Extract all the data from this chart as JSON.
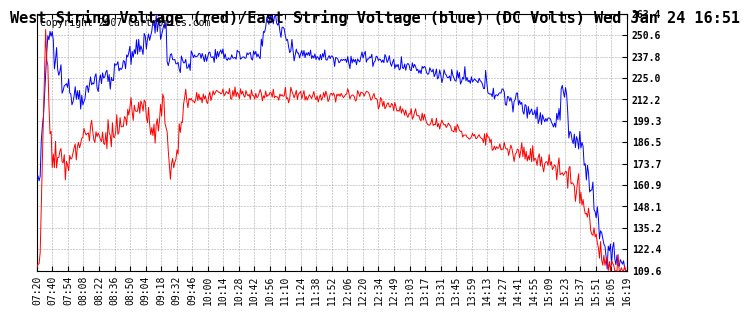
{
  "title": "West String Voltage (red)/East String Voltage (blue) (DC Volts) Wed Jan 24 16:51",
  "copyright": "Copyright 2007 Cartronics.com",
  "ylim": [
    109.6,
    263.4
  ],
  "yticks": [
    263.4,
    250.6,
    237.8,
    225.0,
    212.2,
    199.3,
    186.5,
    173.7,
    160.9,
    148.1,
    135.2,
    122.4,
    109.6
  ],
  "xtick_labels": [
    "07:20",
    "07:40",
    "07:54",
    "08:08",
    "08:22",
    "08:36",
    "08:50",
    "09:04",
    "09:18",
    "09:32",
    "09:46",
    "10:00",
    "10:14",
    "10:28",
    "10:42",
    "10:56",
    "11:10",
    "11:24",
    "11:38",
    "11:52",
    "12:06",
    "12:20",
    "12:34",
    "12:49",
    "13:03",
    "13:17",
    "13:31",
    "13:45",
    "13:59",
    "14:13",
    "14:27",
    "14:41",
    "14:55",
    "15:09",
    "15:23",
    "15:37",
    "15:51",
    "16:05",
    "16:19"
  ],
  "bg_color": "#ffffff",
  "plot_bg_color": "#ffffff",
  "grid_color": "#aaaaaa",
  "red_color": "#ff0000",
  "blue_color": "#0000ff",
  "title_fontsize": 11,
  "copyright_fontsize": 7,
  "tick_fontsize": 7
}
